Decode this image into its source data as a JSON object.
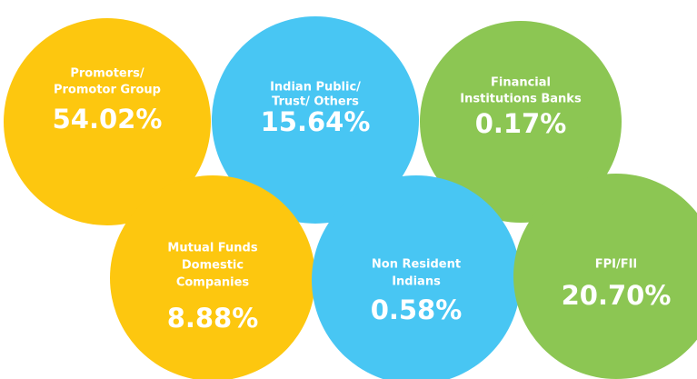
{
  "items": [
    {
      "label": [
        "Promoters/",
        "Promotor Group"
      ],
      "value": "54.02%"
    },
    {
      "label": [
        "Indian Public/",
        "Trust/ Others"
      ],
      "value": "15.64%"
    },
    {
      "label": [
        "Financial",
        "Institutions Banks"
      ],
      "value": "0.17%"
    },
    {
      "label": [
        "Mutual Funds",
        "Domestic",
        "Companies"
      ],
      "value": "8.88%"
    },
    {
      "label": [
        "Non Resident",
        "Indians"
      ],
      "value": "0.58%"
    },
    {
      "label": [
        "FPI/FII"
      ],
      "value": "20.70%"
    }
  ]
}
